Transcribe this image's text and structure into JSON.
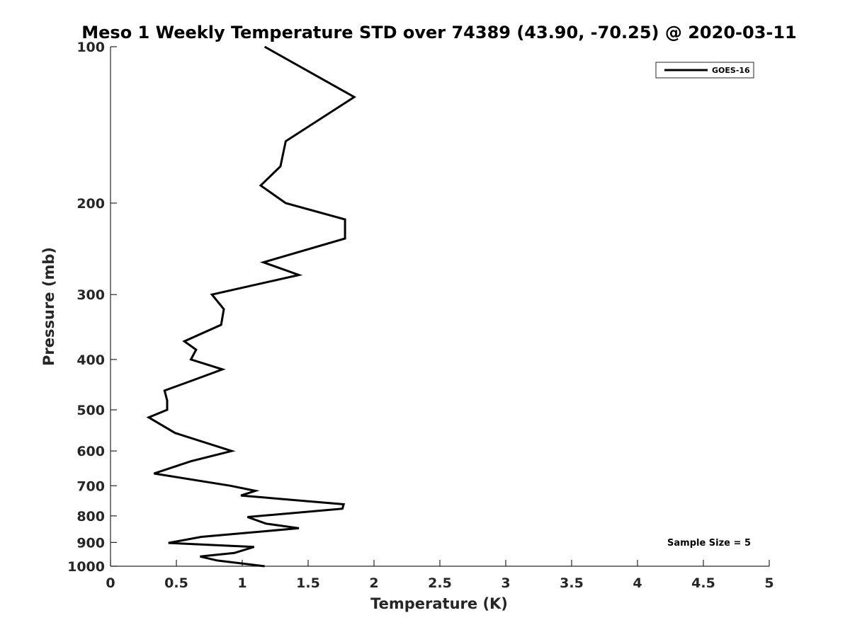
{
  "chart_data": {
    "type": "line",
    "title": "Meso 1 Weekly Temperature STD over 74389 (43.90, -70.25) @ 2020-03-11",
    "xlabel": "Temperature (K)",
    "ylabel": "Pressure (mb)",
    "xlim": [
      0,
      5
    ],
    "ylim": [
      100,
      1000
    ],
    "yscale": "log",
    "y_inverted": true,
    "xticks": [
      0,
      0.5,
      1,
      1.5,
      2,
      2.5,
      3,
      3.5,
      4,
      4.5,
      5
    ],
    "xtick_labels": [
      "0",
      "0.5",
      "1",
      "1.5",
      "2",
      "2.5",
      "3",
      "3.5",
      "4",
      "4.5",
      "5"
    ],
    "yticks": [
      100,
      200,
      300,
      400,
      500,
      600,
      700,
      800,
      900,
      1000
    ],
    "ytick_labels": [
      "100",
      "200",
      "300",
      "400",
      "500",
      "600",
      "700",
      "800",
      "900",
      "1000"
    ],
    "grid": false,
    "legend_position": "top-right",
    "annotation": "Sample Size = 5",
    "series": [
      {
        "name": "GOES-16",
        "color": "#000000",
        "points": [
          [
            1.17,
            100
          ],
          [
            1.85,
            125
          ],
          [
            1.33,
            152
          ],
          [
            1.29,
            170
          ],
          [
            1.14,
            185
          ],
          [
            1.33,
            200
          ],
          [
            1.78,
            215
          ],
          [
            1.78,
            234
          ],
          [
            1.16,
            260
          ],
          [
            1.43,
            275
          ],
          [
            0.77,
            300
          ],
          [
            0.86,
            320
          ],
          [
            0.84,
            343
          ],
          [
            0.56,
            369
          ],
          [
            0.65,
            383
          ],
          [
            0.61,
            400
          ],
          [
            0.85,
            418
          ],
          [
            0.6,
            441
          ],
          [
            0.41,
            459
          ],
          [
            0.43,
            480
          ],
          [
            0.43,
            500
          ],
          [
            0.29,
            517
          ],
          [
            0.49,
            554
          ],
          [
            0.92,
            600
          ],
          [
            0.61,
            628
          ],
          [
            0.33,
            663
          ],
          [
            0.91,
            700
          ],
          [
            1.1,
            716
          ],
          [
            0.99,
            731
          ],
          [
            1.77,
            760
          ],
          [
            1.76,
            775
          ],
          [
            1.04,
            804
          ],
          [
            1.18,
            828
          ],
          [
            1.43,
            845
          ],
          [
            0.69,
            878
          ],
          [
            0.44,
            902
          ],
          [
            1.09,
            918
          ],
          [
            0.94,
            943
          ],
          [
            0.68,
            958
          ],
          [
            0.81,
            975
          ],
          [
            1.17,
            1000
          ]
        ]
      }
    ]
  }
}
